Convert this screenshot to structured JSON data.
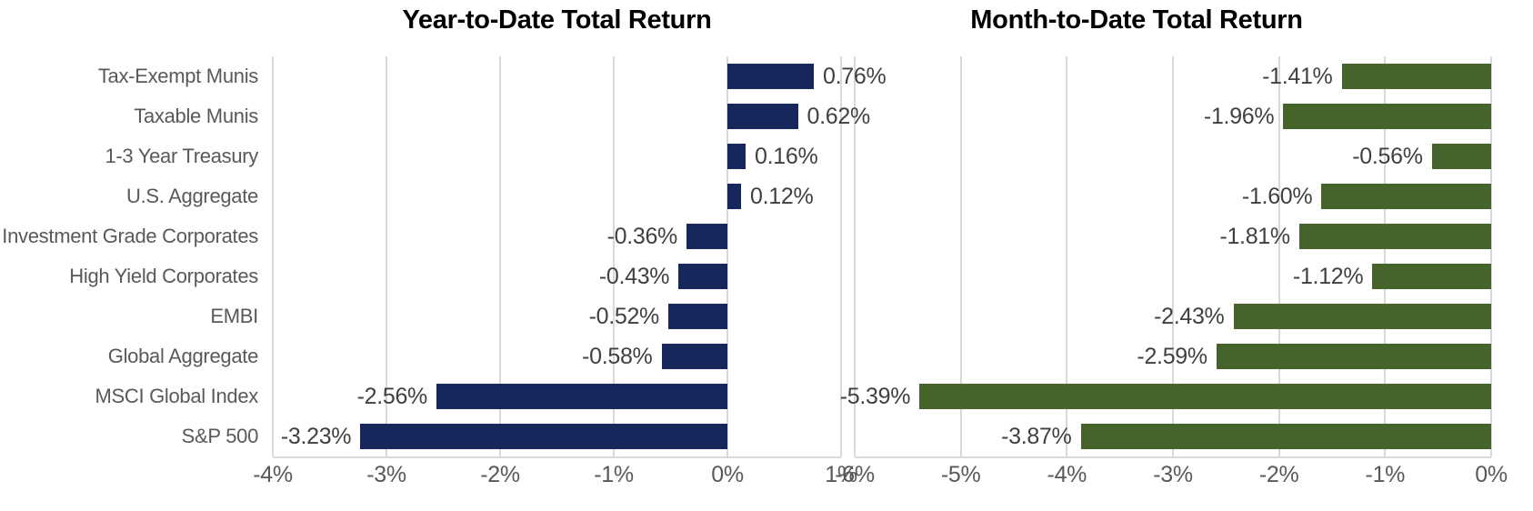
{
  "styles": {
    "background": "#ffffff",
    "grid_color": "#d9d9d9",
    "axis_text_color": "#595959",
    "data_label_color": "#404040",
    "title_color": "#000000",
    "ytd_bar_color": "#17275c",
    "mtd_bar_color": "#47632c"
  },
  "chart_data": [
    {
      "type": "bar",
      "orientation": "horizontal",
      "title": "Year-to-Date Total Return",
      "categories": [
        "Tax-Exempt Munis",
        "Taxable Munis",
        "1-3 Year Treasury",
        "U.S. Aggregate",
        "Investment Grade Corporates",
        "High Yield Corporates",
        "EMBI",
        "Global Aggregate",
        "MSCI Global Index",
        "S&P 500"
      ],
      "values": [
        0.76,
        0.62,
        0.16,
        0.12,
        -0.36,
        -0.43,
        -0.52,
        -0.58,
        -2.56,
        -3.23
      ],
      "data_labels": [
        "0.76%",
        "0.62%",
        "0.16%",
        "0.12%",
        "-0.36%",
        "-0.43%",
        "-0.52%",
        "-0.58%",
        "-2.56%",
        "-3.23%"
      ],
      "xlim": [
        -4,
        1
      ],
      "xtick_labels": [
        "-4%",
        "-3%",
        "-2%",
        "-1%",
        "0%",
        "1%"
      ],
      "bar_color": "#17275c",
      "grid": true,
      "legend": "none",
      "unit": "%"
    },
    {
      "type": "bar",
      "orientation": "horizontal",
      "title": "Month-to-Date Total Return",
      "categories": [
        "Tax-Exempt Munis",
        "Taxable Munis",
        "1-3 Year Treasury",
        "U.S. Aggregate",
        "Investment Grade Corporates",
        "High Yield Corporates",
        "EMBI",
        "Global Aggregate",
        "MSCI Global Index",
        "S&P 500"
      ],
      "values": [
        -1.41,
        -1.96,
        -0.56,
        -1.6,
        -1.81,
        -1.12,
        -2.43,
        -2.59,
        -5.39,
        -3.87
      ],
      "data_labels": [
        "-1.41%",
        "-1.96%",
        "-0.56%",
        "-1.60%",
        "-1.81%",
        "-1.12%",
        "-2.43%",
        "-2.59%",
        "-5.39%",
        "-3.87%"
      ],
      "xlim": [
        -6,
        0
      ],
      "xtick_labels": [
        "-6%",
        "-5%",
        "-4%",
        "-3%",
        "-2%",
        "-1%",
        "0%"
      ],
      "bar_color": "#47632c",
      "grid": true,
      "legend": "none",
      "unit": "%"
    }
  ]
}
